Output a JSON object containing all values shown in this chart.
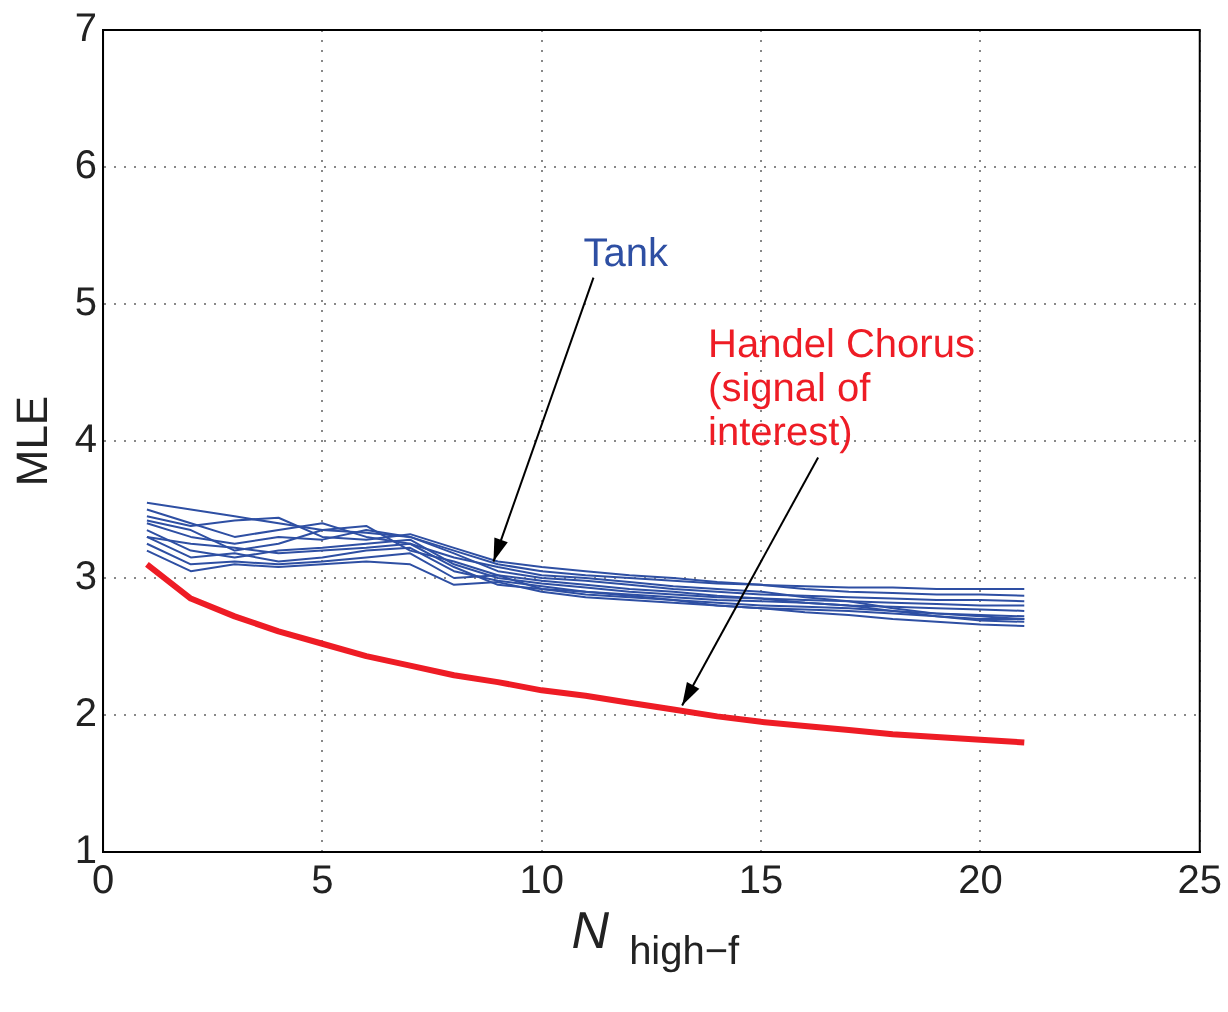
{
  "chart_data": {
    "type": "line",
    "xlabel": "N$_{high−f}$",
    "ylabel": "MLE",
    "x": [
      1,
      2,
      3,
      4,
      5,
      6,
      7,
      8,
      9,
      10,
      11,
      12,
      13,
      14,
      15,
      16,
      17,
      18,
      19,
      20,
      21
    ],
    "xlim": [
      0,
      25
    ],
    "xticks": [
      0,
      5,
      10,
      15,
      20,
      25
    ],
    "ylim": [
      1,
      7
    ],
    "yticks": [
      1,
      2,
      3,
      4,
      5,
      6,
      7
    ],
    "grid": true,
    "legend": false,
    "marker": "none",
    "line_style": "solid",
    "series": [
      {
        "color": "#2e4fa3",
        "values": [
          3.55,
          3.5,
          3.45,
          3.4,
          3.35,
          3.33,
          3.3,
          3.2,
          3.1,
          3.05,
          3.02,
          3.0,
          2.98,
          2.96,
          2.95,
          2.94,
          2.93,
          2.93,
          2.92,
          2.92,
          2.92
        ]
      },
      {
        "color": "#2e4fa3",
        "values": [
          3.45,
          3.38,
          3.42,
          3.44,
          3.3,
          3.28,
          3.32,
          3.22,
          3.12,
          3.08,
          3.05,
          3.02,
          3.0,
          2.97,
          2.95,
          2.92,
          2.9,
          2.89,
          2.88,
          2.88,
          2.87
        ]
      },
      {
        "color": "#2e4fa3",
        "values": [
          3.4,
          3.3,
          3.25,
          3.3,
          3.28,
          3.35,
          3.3,
          3.18,
          3.05,
          3.0,
          2.98,
          2.95,
          2.92,
          2.9,
          2.88,
          2.87,
          2.86,
          2.85,
          2.84,
          2.84,
          2.83
        ]
      },
      {
        "color": "#2e4fa3",
        "values": [
          3.35,
          3.2,
          3.15,
          3.2,
          3.22,
          3.25,
          3.28,
          3.1,
          3.0,
          2.96,
          2.93,
          2.9,
          2.88,
          2.86,
          2.85,
          2.84,
          2.83,
          2.82,
          2.81,
          2.8,
          2.8
        ]
      },
      {
        "color": "#2e4fa3",
        "values": [
          3.3,
          3.15,
          3.18,
          3.12,
          3.15,
          3.2,
          3.22,
          3.05,
          2.98,
          2.94,
          2.9,
          2.88,
          2.86,
          2.84,
          2.83,
          2.82,
          2.8,
          2.79,
          2.78,
          2.77,
          2.76
        ]
      },
      {
        "color": "#2e4fa3",
        "values": [
          3.25,
          3.1,
          3.12,
          3.1,
          3.12,
          3.15,
          3.18,
          3.0,
          3.02,
          2.92,
          2.88,
          2.86,
          2.84,
          2.82,
          2.8,
          2.79,
          2.78,
          2.76,
          2.74,
          2.73,
          2.72
        ]
      },
      {
        "color": "#2e4fa3",
        "values": [
          3.2,
          3.05,
          3.1,
          3.08,
          3.1,
          3.12,
          3.1,
          2.95,
          2.97,
          2.9,
          2.86,
          2.84,
          2.82,
          2.8,
          2.78,
          2.77,
          2.76,
          2.74,
          2.72,
          2.7,
          2.7
        ]
      },
      {
        "color": "#2e4fa3",
        "values": [
          3.5,
          3.4,
          3.3,
          3.35,
          3.4,
          3.3,
          3.25,
          3.15,
          3.08,
          3.02,
          3.0,
          2.97,
          2.94,
          2.92,
          2.9,
          2.86,
          2.83,
          2.78,
          2.74,
          2.72,
          2.7
        ]
      },
      {
        "color": "#2e4fa3",
        "values": [
          3.42,
          3.35,
          3.2,
          3.25,
          3.35,
          3.38,
          3.2,
          3.12,
          3.02,
          2.98,
          2.95,
          2.92,
          2.9,
          2.87,
          2.85,
          2.82,
          2.8,
          2.76,
          2.72,
          2.69,
          2.68
        ]
      },
      {
        "color": "#2e4fa3",
        "values": [
          3.3,
          3.25,
          3.22,
          3.18,
          3.2,
          3.22,
          3.25,
          3.08,
          2.95,
          2.92,
          2.9,
          2.87,
          2.84,
          2.8,
          2.78,
          2.75,
          2.73,
          2.7,
          2.68,
          2.66,
          2.65
        ]
      },
      {
        "color": "#ee1c25",
        "values": [
          3.1,
          2.85,
          2.72,
          2.61,
          2.52,
          2.43,
          2.36,
          2.29,
          2.24,
          2.18,
          2.14,
          2.09,
          2.04,
          1.99,
          1.95,
          1.92,
          1.89,
          1.86,
          1.84,
          1.82,
          1.8
        ]
      }
    ],
    "annotations": [
      {
        "text": "Tank",
        "x": 8.9,
        "y": 3.12
      },
      {
        "text": "Handel Chorus\n(signal of\ninterest)",
        "x": 13.2,
        "y": 2.07
      }
    ]
  }
}
